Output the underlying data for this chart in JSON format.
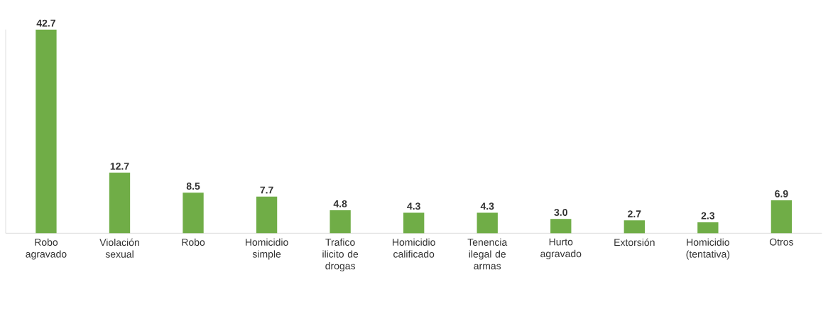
{
  "chart_data": {
    "type": "bar",
    "categories": [
      "Robo agravado",
      "Violación sexual",
      "Robo",
      "Homicidio simple",
      "Trafico ilicito de drogas",
      "Homicidio calificado",
      "Tenencia ilegal de armas",
      "Hurto agravado",
      "Extorsión",
      "Homicidio (tentativa)",
      "Otros"
    ],
    "values": [
      42.7,
      12.7,
      8.5,
      7.7,
      4.8,
      4.3,
      4.3,
      3.0,
      2.7,
      2.3,
      6.9
    ],
    "value_labels": [
      "42.7",
      "12.7",
      "8.5",
      "7.7",
      "4.8",
      "4.3",
      "4.3",
      "3.0",
      "2.7",
      "2.3",
      "6.9"
    ],
    "color": "#70ad47",
    "ylim": [
      0,
      42.7
    ],
    "tick_labels": "x"
  }
}
